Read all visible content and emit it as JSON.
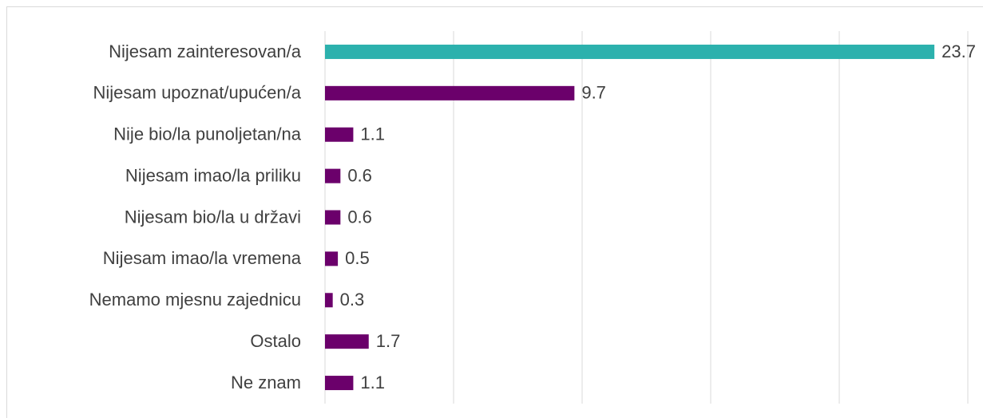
{
  "chart_data": {
    "type": "bar",
    "orientation": "horizontal",
    "categories": [
      "Nijesam zainteresovan/a",
      "Nijesam upoznat/upućen/a",
      "Nije bio/la punoljetan/na",
      "Nijesam imao/la priliku",
      "Nijesam bio/la u državi",
      "Nijesam imao/la vremena",
      "Nemamo mjesnu zajednicu",
      "Ostalo",
      "Ne znam"
    ],
    "values": [
      23.7,
      9.7,
      1.1,
      0.6,
      0.6,
      0.5,
      0.3,
      1.7,
      1.1
    ],
    "colors": [
      "#2cb1ad",
      "#6b006b",
      "#6b006b",
      "#6b006b",
      "#6b006b",
      "#6b006b",
      "#6b006b",
      "#6b006b",
      "#6b006b"
    ],
    "xlim": [
      0,
      25
    ],
    "xticks": [
      0,
      5,
      10,
      15,
      20,
      25
    ],
    "grid": true
  }
}
